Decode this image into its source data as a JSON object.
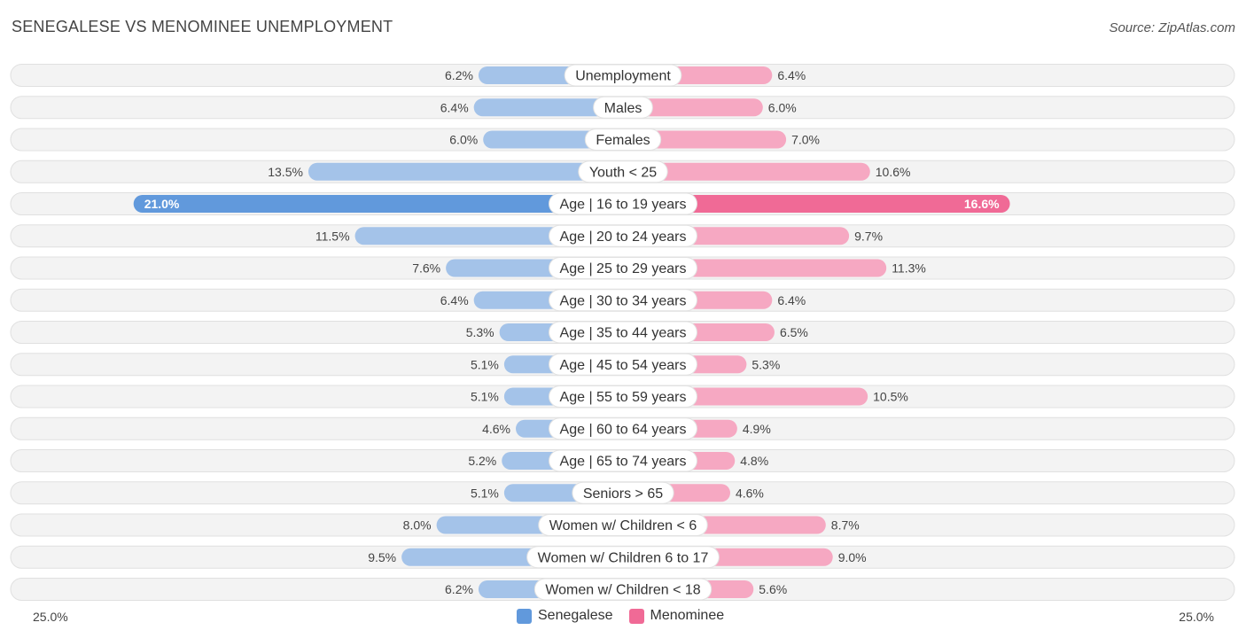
{
  "header": {
    "title": "SENEGALESE VS MENOMINEE UNEMPLOYMENT",
    "source": "Source: ZipAtlas.com"
  },
  "colors": {
    "left_light": "#a4c3e9",
    "left_strong": "#6199dc",
    "right_light": "#f6a8c2",
    "right_strong": "#f06a96"
  },
  "chart_data": {
    "type": "bar",
    "orientation": "horizontal-diverging",
    "categories": [
      "Unemployment",
      "Males",
      "Females",
      "Youth < 25",
      "Age | 16 to 19 years",
      "Age | 20 to 24 years",
      "Age | 25 to 29 years",
      "Age | 30 to 34 years",
      "Age | 35 to 44 years",
      "Age | 45 to 54 years",
      "Age | 55 to 59 years",
      "Age | 60 to 64 years",
      "Age | 65 to 74 years",
      "Seniors > 65",
      "Women w/ Children < 6",
      "Women w/ Children 6 to 17",
      "Women w/ Children < 18"
    ],
    "series": [
      {
        "name": "Senegalese",
        "values": [
          6.2,
          6.4,
          6.0,
          13.5,
          21.0,
          11.5,
          7.6,
          6.4,
          5.3,
          5.1,
          5.1,
          4.6,
          5.2,
          5.1,
          8.0,
          9.5,
          6.2
        ],
        "labels": [
          "6.2%",
          "6.4%",
          "6.0%",
          "13.5%",
          "21.0%",
          "11.5%",
          "7.6%",
          "6.4%",
          "5.3%",
          "5.1%",
          "5.1%",
          "4.6%",
          "5.2%",
          "5.1%",
          "8.0%",
          "9.5%",
          "6.2%"
        ]
      },
      {
        "name": "Menominee",
        "values": [
          6.4,
          6.0,
          7.0,
          10.6,
          16.6,
          9.7,
          11.3,
          6.4,
          6.5,
          5.3,
          10.5,
          4.9,
          4.8,
          4.6,
          8.7,
          9.0,
          5.6
        ],
        "labels": [
          "6.4%",
          "6.0%",
          "7.0%",
          "10.6%",
          "16.6%",
          "9.7%",
          "11.3%",
          "6.4%",
          "6.5%",
          "5.3%",
          "10.5%",
          "4.9%",
          "4.8%",
          "4.6%",
          "8.7%",
          "9.0%",
          "5.6%"
        ]
      }
    ],
    "xlim": [
      0,
      25
    ],
    "axis_left_label": "25.0%",
    "axis_right_label": "25.0%",
    "legend": [
      "Senegalese",
      "Menominee"
    ],
    "legend_position": "bottom-center"
  }
}
